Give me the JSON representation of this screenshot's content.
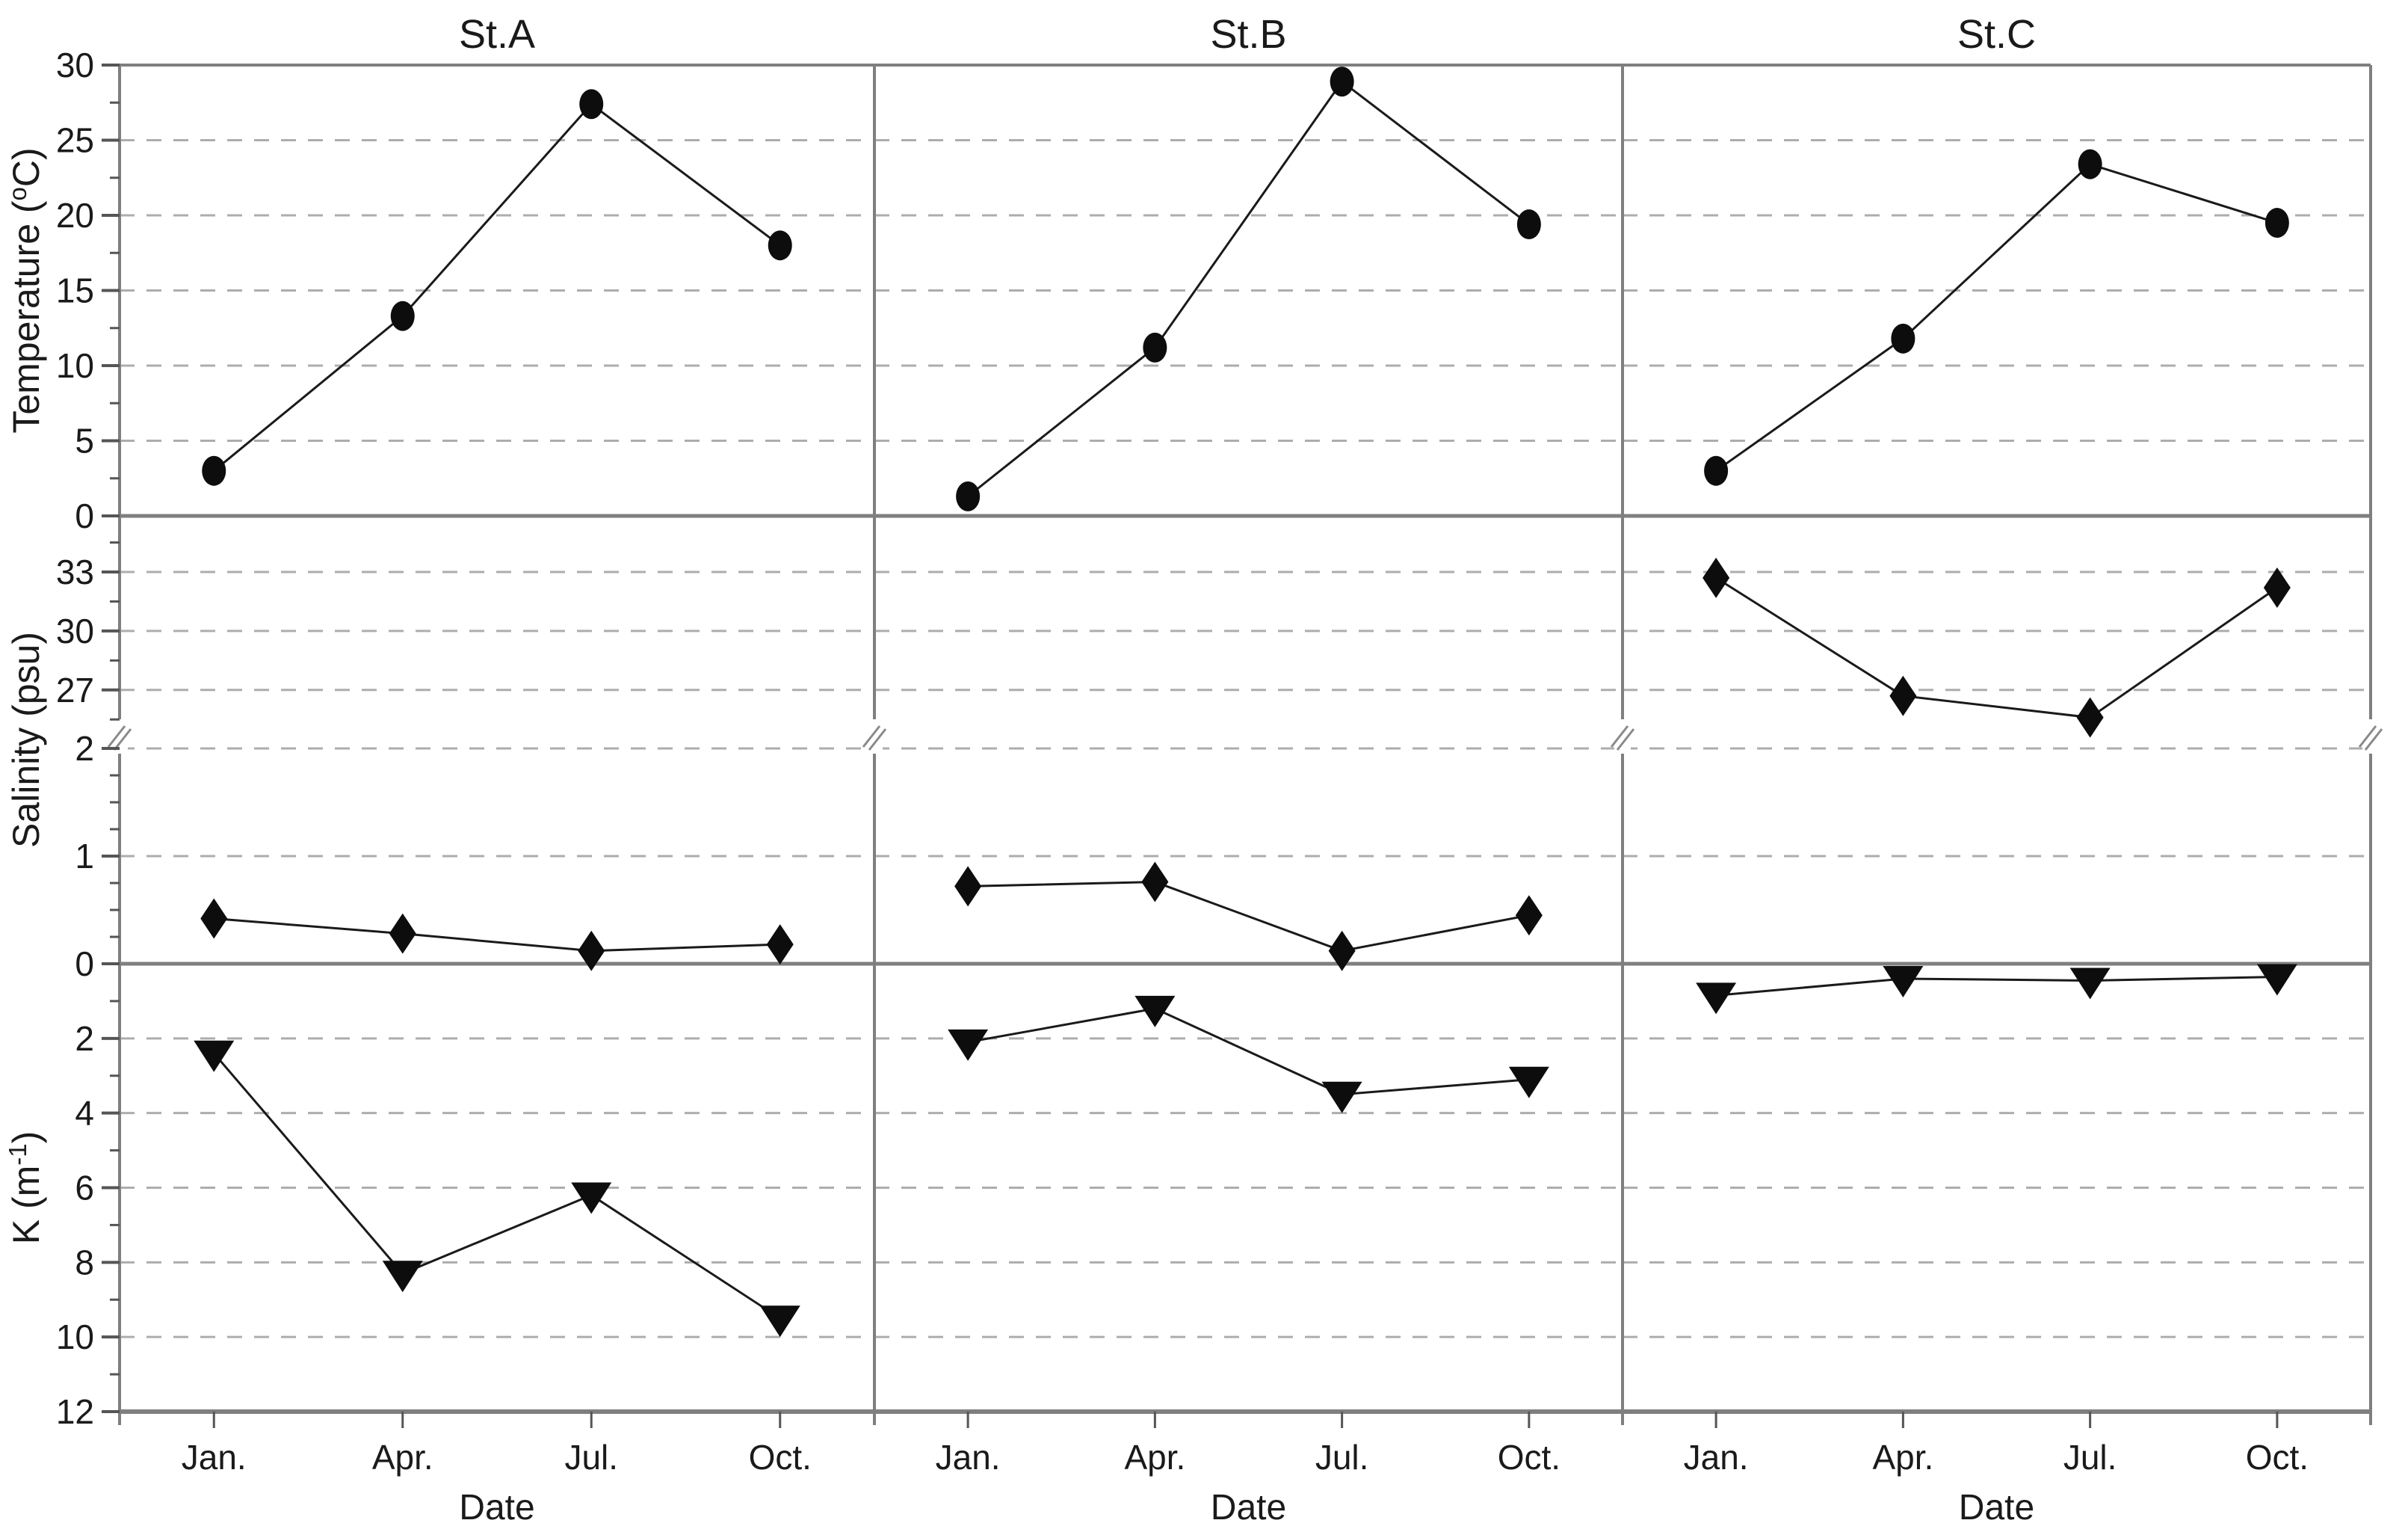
{
  "figure": {
    "background": "#ffffff",
    "x_axis_label": "Date",
    "panel_titles": [
      "St.A",
      "St.B",
      "St.C"
    ]
  },
  "chart_data": {
    "type": "line",
    "layout": "3 columns (stations St.A, St.B, St.C) x 3 rows (Temperature, Salinity, K) small-multiple panels, shared x axis, no legend, dashed horizontal gridlines",
    "columns": [
      "St.A",
      "St.B",
      "St.C"
    ],
    "categories": [
      "Jan.",
      "Apr.",
      "Jul.",
      "Oct."
    ],
    "x_label": "Date",
    "colors": {
      "line": "#1a1a1a",
      "marker": "#0d0d0d",
      "grid": "#adadad",
      "border": "#7f7f7f",
      "text": "#1a1a1a",
      "background": "#ffffff"
    },
    "rows": [
      {
        "id": "temperature",
        "ylabel_prefix": "Temperature (",
        "ylabel_sup": "o",
        "ylabel_suffix": "C)",
        "marker": "circle",
        "inverted": false,
        "ylim": [
          0,
          30
        ],
        "yticks": [
          0,
          5,
          10,
          15,
          20,
          25,
          30
        ],
        "gridlines": [
          5,
          10,
          15,
          20,
          25
        ],
        "series": [
          {
            "name": "St.A",
            "values": [
              3.0,
              13.3,
              27.4,
              18.0
            ]
          },
          {
            "name": "St.B",
            "values": [
              1.3,
              11.2,
              28.9,
              19.4
            ]
          },
          {
            "name": "St.C",
            "values": [
              3.0,
              11.8,
              23.4,
              19.5
            ]
          }
        ]
      },
      {
        "id": "salinity",
        "ylabel_prefix": "Salinity (psu)",
        "ylabel_sup": "",
        "ylabel_suffix": "",
        "marker": "diamond",
        "axis_break": true,
        "lower_range": [
          0,
          2.3
        ],
        "upper_range": [
          24.5,
          36
        ],
        "lower_ticks": [
          0,
          1,
          2
        ],
        "upper_ticks": [
          27,
          30,
          33
        ],
        "gridlines_lower": [
          1,
          2
        ],
        "gridlines_upper": [
          27,
          30,
          33
        ],
        "series": [
          {
            "name": "St.A",
            "values": [
              0.42,
              0.28,
              0.12,
              0.18
            ]
          },
          {
            "name": "St.B",
            "values": [
              0.72,
              0.76,
              0.12,
              0.45
            ]
          },
          {
            "name": "St.C",
            "values": [
              32.7,
              26.7,
              25.6,
              32.2
            ]
          }
        ]
      },
      {
        "id": "k",
        "ylabel_prefix": "K (m",
        "ylabel_sup": "-1",
        "ylabel_suffix": ")",
        "marker": "triangle-down",
        "inverted": true,
        "ylim": [
          0,
          12
        ],
        "yticks": [
          2,
          4,
          6,
          8,
          10,
          12
        ],
        "gridlines": [
          2,
          4,
          6,
          8,
          10
        ],
        "shared_zero_with_row_above": true,
        "series": [
          {
            "name": "St.A",
            "values": [
              2.4,
              8.3,
              6.2,
              9.5
            ]
          },
          {
            "name": "St.B",
            "values": [
              2.1,
              1.2,
              3.5,
              3.1
            ]
          },
          {
            "name": "St.C",
            "values": [
              0.85,
              0.4,
              0.45,
              0.35
            ]
          }
        ]
      }
    ]
  }
}
